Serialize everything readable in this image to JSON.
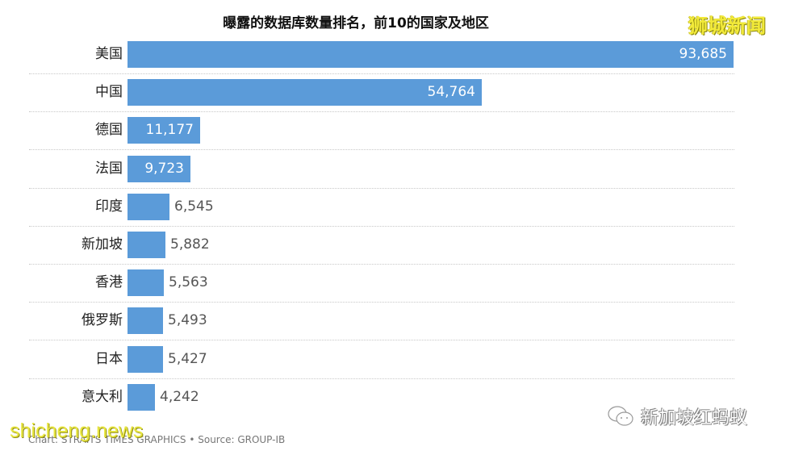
{
  "chart_data": {
    "type": "bar",
    "orientation": "horizontal",
    "title": "曝露的数据库数量排名，前10的国家及地区",
    "xlabel": "",
    "ylabel": "",
    "categories": [
      "美国",
      "中国",
      "德国",
      "法国",
      "印度",
      "新加坡",
      "香港",
      "俄罗斯",
      "日本",
      "意大利"
    ],
    "values": [
      93685,
      54764,
      11177,
      9723,
      6545,
      5882,
      5563,
      5493,
      5427,
      4242
    ],
    "value_labels": [
      "93,685",
      "54,764",
      "11,177",
      "9,723",
      "6,545",
      "5,882",
      "5,563",
      "5,493",
      "5,427",
      "4,242"
    ],
    "bar_color": "#5b9bd9",
    "grid": false,
    "legend": null,
    "source": "Chart: STRAITS TIMES GRAPHICS • Source: GROUP-IB"
  },
  "header": {
    "title": "曝露的数据库数量排名，前10的国家及地区"
  },
  "rows": [
    {
      "label": "美国",
      "value": "93,685"
    },
    {
      "label": "中国",
      "value": "54,764"
    },
    {
      "label": "德国",
      "value": "11,177"
    },
    {
      "label": "法国",
      "value": "9,723"
    },
    {
      "label": "印度",
      "value": "6,545"
    },
    {
      "label": "新加坡",
      "value": "5,882"
    },
    {
      "label": "香港",
      "value": "5,563"
    },
    {
      "label": "俄罗斯",
      "value": "5,493"
    },
    {
      "label": "日本",
      "value": "5,427"
    },
    {
      "label": "意大利",
      "value": "4,242"
    }
  ],
  "footer": {
    "credit": "Chart: STRAITS TIMES GRAPHICS • Source: GROUP-IB"
  },
  "watermarks": {
    "top_right": "狮城新闻",
    "bottom_left": "shicheng.news",
    "bottom_right": "新加坡红蚂蚁"
  }
}
